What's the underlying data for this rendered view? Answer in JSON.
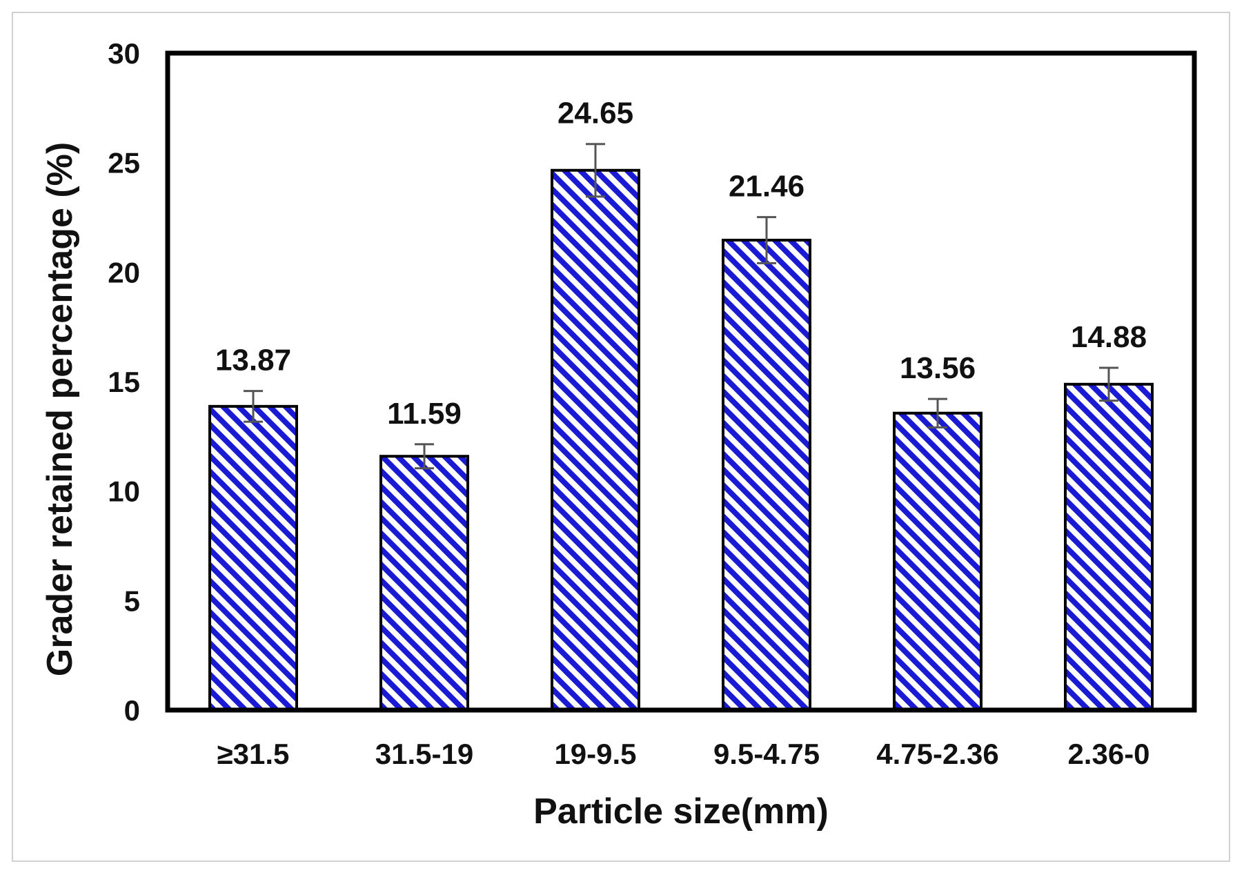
{
  "chart_data": {
    "type": "bar",
    "categories": [
      "≥31.5",
      "31.5-19",
      "19-9.5",
      "9.5-4.75",
      "4.75-2.36",
      "2.36-0"
    ],
    "values": [
      13.87,
      11.59,
      24.65,
      21.46,
      13.56,
      14.88
    ],
    "value_labels": [
      "13.87",
      "11.59",
      "24.65",
      "21.46",
      "13.56",
      "14.88"
    ],
    "error_bars": [
      0.7,
      0.55,
      1.2,
      1.05,
      0.65,
      0.75
    ],
    "xlabel": "Particle size(mm)",
    "ylabel": "Grader retained percentage (%)",
    "ylim": [
      0,
      30
    ],
    "yticks": [
      0,
      5,
      10,
      15,
      20,
      25,
      30
    ],
    "grid": false,
    "legend": "none",
    "colors": {
      "bar_stripe": "#1a1ad4",
      "bar_background": "#ffffff",
      "bar_outline": "#000000",
      "error_bar": "#555555",
      "axis_box": "#000000"
    }
  }
}
